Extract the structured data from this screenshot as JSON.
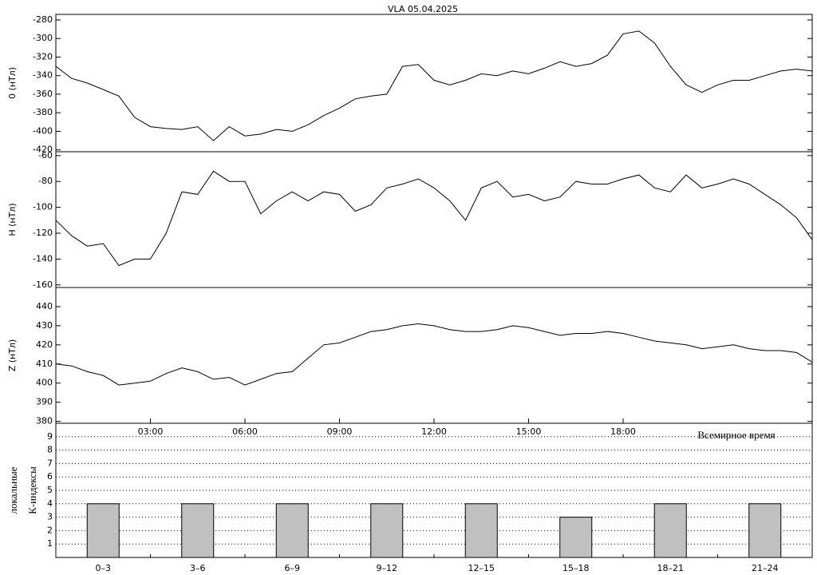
{
  "chart_data": [
    {
      "type": "line",
      "title": "VLA   05.04.2025",
      "ylabel": "0 (нТл)",
      "color": "#000000",
      "x": [
        0,
        0.5,
        1,
        1.5,
        2,
        2.5,
        3,
        3.5,
        4,
        4.5,
        5,
        5.5,
        6,
        6.5,
        7,
        7.5,
        8,
        8.5,
        9,
        9.5,
        10,
        10.5,
        11,
        11.5,
        12,
        12.5,
        13,
        13.5,
        14,
        14.5,
        15,
        15.5,
        16,
        16.5,
        17,
        17.5,
        18,
        18.5,
        19,
        19.5,
        20,
        20.5,
        21,
        21.5,
        22,
        22.5,
        23,
        23.5,
        24
      ],
      "values": [
        -330,
        -343,
        -348,
        -355,
        -362,
        -385,
        -395,
        -397,
        -398,
        -395,
        -410,
        -395,
        -405,
        -403,
        -398,
        -400,
        -393,
        -383,
        -375,
        -365,
        -362,
        -360,
        -330,
        -328,
        -345,
        -350,
        -345,
        -338,
        -340,
        -335,
        -338,
        -332,
        -325,
        -330,
        -327,
        -318,
        -295,
        -292,
        -305,
        -330,
        -350,
        -358,
        -350,
        -345,
        -345,
        -340,
        -335,
        -333,
        -335
      ],
      "xlim": [
        0,
        24
      ],
      "ylim": [
        -422,
        -274
      ],
      "yticks": [
        -280,
        -300,
        -320,
        -340,
        -360,
        -380,
        -400,
        -420
      ]
    },
    {
      "type": "line",
      "ylabel": "H (нТл)",
      "color": "#000000",
      "x": [
        0,
        0.5,
        1,
        1.5,
        2,
        2.5,
        3,
        3.5,
        4,
        4.5,
        5,
        5.5,
        6,
        6.5,
        7,
        7.5,
        8,
        8.5,
        9,
        9.5,
        10,
        10.5,
        11,
        11.5,
        12,
        12.5,
        13,
        13.5,
        14,
        14.5,
        15,
        15.5,
        16,
        16.5,
        17,
        17.5,
        18,
        18.5,
        19,
        19.5,
        20,
        20.5,
        21,
        21.5,
        22,
        22.5,
        23,
        23.5,
        24
      ],
      "values": [
        -110,
        -122,
        -130,
        -128,
        -145,
        -140,
        -140,
        -120,
        -88,
        -90,
        -72,
        -80,
        -80,
        -105,
        -95,
        -88,
        -95,
        -88,
        -90,
        -103,
        -98,
        -85,
        -82,
        -78,
        -85,
        -95,
        -110,
        -85,
        -80,
        -92,
        -90,
        -95,
        -92,
        -80,
        -82,
        -82,
        -78,
        -75,
        -85,
        -88,
        -75,
        -85,
        -82,
        -78,
        -82,
        -90,
        -98,
        -108,
        -125
      ],
      "xlim": [
        0,
        24
      ],
      "ylim": [
        -162,
        -57
      ],
      "yticks": [
        -60,
        -80,
        -100,
        -120,
        -140,
        -160
      ]
    },
    {
      "type": "line",
      "ylabel": "Z (нТл)",
      "xlabel": "Всемирное время",
      "color": "#000000",
      "x": [
        0,
        0.5,
        1,
        1.5,
        2,
        2.5,
        3,
        3.5,
        4,
        4.5,
        5,
        5.5,
        6,
        6.5,
        7,
        7.5,
        8,
        8.5,
        9,
        9.5,
        10,
        10.5,
        11,
        11.5,
        12,
        12.5,
        13,
        13.5,
        14,
        14.5,
        15,
        15.5,
        16,
        16.5,
        17,
        17.5,
        18,
        18.5,
        19,
        19.5,
        20,
        20.5,
        21,
        21.5,
        22,
        22.5,
        23,
        23.5,
        24
      ],
      "values": [
        410,
        409,
        406,
        404,
        399,
        400,
        401,
        405,
        408,
        406,
        402,
        403,
        399,
        402,
        405,
        406,
        413,
        420,
        421,
        424,
        427,
        428,
        430,
        431,
        430,
        428,
        427,
        427,
        428,
        430,
        429,
        427,
        425,
        426,
        426,
        427,
        426,
        424,
        422,
        421,
        420,
        418,
        419,
        420,
        418,
        417,
        417,
        416,
        411
      ],
      "xlim": [
        0,
        24
      ],
      "ylim": [
        379,
        450
      ],
      "yticks": [
        380,
        390,
        400,
        410,
        420,
        430,
        440
      ],
      "xticks": [
        {
          "value": 3,
          "label": "03:00"
        },
        {
          "value": 6,
          "label": "06:00"
        },
        {
          "value": 9,
          "label": "09:00"
        },
        {
          "value": 12,
          "label": "12:00"
        },
        {
          "value": 15,
          "label": "15:00"
        },
        {
          "value": 18,
          "label": "18:00"
        }
      ]
    },
    {
      "type": "bar",
      "ylabel": [
        "локальные",
        "К-индексы"
      ],
      "color": "#c0c0c0",
      "grid": true,
      "categories": [
        "0–3",
        "3–6",
        "6–9",
        "9–12",
        "12–15",
        "15–18",
        "18–21",
        "21–24"
      ],
      "values": [
        4,
        4,
        4,
        4,
        4,
        3,
        4,
        4
      ],
      "ylim": [
        0,
        10
      ],
      "yticks": [
        1,
        2,
        3,
        4,
        5,
        6,
        7,
        8,
        9
      ]
    }
  ]
}
